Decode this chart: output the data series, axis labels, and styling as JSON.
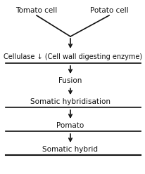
{
  "bg_color": "#ffffff",
  "text_color": "#111111",
  "line_color": "#111111",
  "tomato_label": "Tomato cell",
  "potato_label": "Potato cell",
  "steps": [
    "Cellulase ↓ (Cell wall digesting enzyme)",
    "Fusion",
    "Somatic hybridisation",
    "Pomato",
    "Somatic hybrid"
  ],
  "figsize": [
    2.07,
    2.48
  ],
  "dpi": 100
}
